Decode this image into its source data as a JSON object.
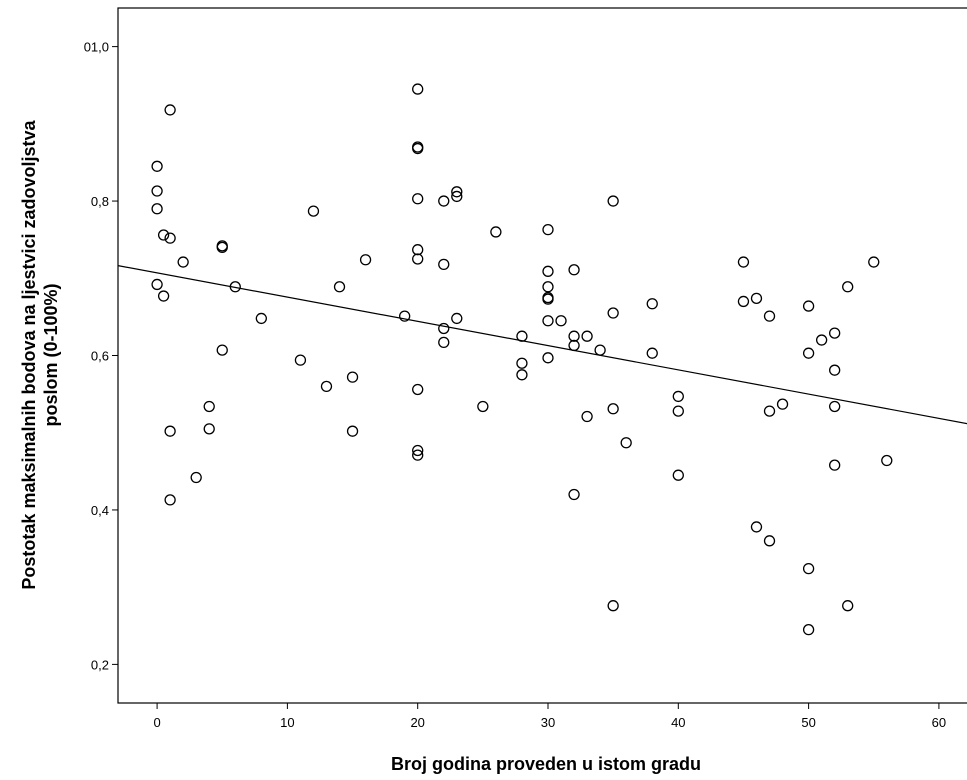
{
  "chart_data": {
    "type": "scatter",
    "title": "",
    "xlabel": "Broj godina proveden u istom gradu",
    "ylabel_lines": [
      "Postotak maksimalnih bodova na ljestvici zadovoljstva",
      "poslom (0-100%)"
    ],
    "xlim": [
      -3,
      63
    ],
    "ylim": [
      0.15,
      1.05
    ],
    "x_ticks": [
      {
        "value": 0,
        "label": "0"
      },
      {
        "value": 10,
        "label": "10"
      },
      {
        "value": 20,
        "label": "20"
      },
      {
        "value": 30,
        "label": "30"
      },
      {
        "value": 40,
        "label": "40"
      },
      {
        "value": 50,
        "label": "50"
      },
      {
        "value": 60,
        "label": "60"
      }
    ],
    "y_ticks": [
      {
        "value": 1.0,
        "label": "01,0"
      },
      {
        "value": 0.8,
        "label": "0,8"
      },
      {
        "value": 0.6,
        "label": "0,6"
      },
      {
        "value": 0.4,
        "label": "0,4"
      },
      {
        "value": 0.2,
        "label": "0,2"
      }
    ],
    "grid": false,
    "fit_line": {
      "intercept": 0.707,
      "slope": -0.00314
    },
    "points": [
      {
        "x": 0,
        "y": 0.845
      },
      {
        "x": 0,
        "y": 0.813
      },
      {
        "x": 0,
        "y": 0.79
      },
      {
        "x": 0,
        "y": 0.692
      },
      {
        "x": 0.5,
        "y": 0.677
      },
      {
        "x": 0.5,
        "y": 0.756
      },
      {
        "x": 1,
        "y": 0.918
      },
      {
        "x": 1,
        "y": 0.752
      },
      {
        "x": 1,
        "y": 0.502
      },
      {
        "x": 1,
        "y": 0.413
      },
      {
        "x": 2,
        "y": 0.721
      },
      {
        "x": 3,
        "y": 0.442
      },
      {
        "x": 4,
        "y": 0.534
      },
      {
        "x": 4,
        "y": 0.505
      },
      {
        "x": 5,
        "y": 0.742
      },
      {
        "x": 5,
        "y": 0.74
      },
      {
        "x": 5,
        "y": 0.607
      },
      {
        "x": 6,
        "y": 0.689
      },
      {
        "x": 8,
        "y": 0.648
      },
      {
        "x": 11,
        "y": 0.594
      },
      {
        "x": 12,
        "y": 0.787
      },
      {
        "x": 13,
        "y": 0.56
      },
      {
        "x": 14,
        "y": 0.689
      },
      {
        "x": 15,
        "y": 0.572
      },
      {
        "x": 15,
        "y": 0.502
      },
      {
        "x": 16,
        "y": 0.724
      },
      {
        "x": 19,
        "y": 0.651
      },
      {
        "x": 20,
        "y": 0.945
      },
      {
        "x": 20,
        "y": 0.87
      },
      {
        "x": 20,
        "y": 0.868
      },
      {
        "x": 20,
        "y": 0.803
      },
      {
        "x": 20,
        "y": 0.737
      },
      {
        "x": 20,
        "y": 0.725
      },
      {
        "x": 20,
        "y": 0.556
      },
      {
        "x": 20,
        "y": 0.477
      },
      {
        "x": 20,
        "y": 0.471
      },
      {
        "x": 22,
        "y": 0.8
      },
      {
        "x": 22,
        "y": 0.718
      },
      {
        "x": 22,
        "y": 0.635
      },
      {
        "x": 22,
        "y": 0.617
      },
      {
        "x": 23,
        "y": 0.812
      },
      {
        "x": 23,
        "y": 0.806
      },
      {
        "x": 23,
        "y": 0.648
      },
      {
        "x": 25,
        "y": 0.534
      },
      {
        "x": 26,
        "y": 0.76
      },
      {
        "x": 28,
        "y": 0.625
      },
      {
        "x": 28,
        "y": 0.59
      },
      {
        "x": 28,
        "y": 0.575
      },
      {
        "x": 30,
        "y": 0.763
      },
      {
        "x": 30,
        "y": 0.709
      },
      {
        "x": 30,
        "y": 0.689
      },
      {
        "x": 30,
        "y": 0.675
      },
      {
        "x": 30,
        "y": 0.673
      },
      {
        "x": 30,
        "y": 0.645
      },
      {
        "x": 30,
        "y": 0.597
      },
      {
        "x": 31,
        "y": 0.645
      },
      {
        "x": 32,
        "y": 0.711
      },
      {
        "x": 32,
        "y": 0.625
      },
      {
        "x": 32,
        "y": 0.613
      },
      {
        "x": 32,
        "y": 0.42
      },
      {
        "x": 33,
        "y": 0.625
      },
      {
        "x": 33,
        "y": 0.521
      },
      {
        "x": 34,
        "y": 0.607
      },
      {
        "x": 35,
        "y": 0.8
      },
      {
        "x": 35,
        "y": 0.655
      },
      {
        "x": 35,
        "y": 0.531
      },
      {
        "x": 35,
        "y": 0.276
      },
      {
        "x": 36,
        "y": 0.487
      },
      {
        "x": 38,
        "y": 0.667
      },
      {
        "x": 38,
        "y": 0.603
      },
      {
        "x": 40,
        "y": 0.547
      },
      {
        "x": 40,
        "y": 0.528
      },
      {
        "x": 40,
        "y": 0.445
      },
      {
        "x": 45,
        "y": 0.721
      },
      {
        "x": 45,
        "y": 0.67
      },
      {
        "x": 46,
        "y": 0.674
      },
      {
        "x": 46,
        "y": 0.378
      },
      {
        "x": 47,
        "y": 0.651
      },
      {
        "x": 47,
        "y": 0.528
      },
      {
        "x": 47,
        "y": 0.36
      },
      {
        "x": 48,
        "y": 0.537
      },
      {
        "x": 50,
        "y": 0.664
      },
      {
        "x": 50,
        "y": 0.603
      },
      {
        "x": 50,
        "y": 0.324
      },
      {
        "x": 50,
        "y": 0.245
      },
      {
        "x": 51,
        "y": 0.62
      },
      {
        "x": 52,
        "y": 0.629
      },
      {
        "x": 52,
        "y": 0.581
      },
      {
        "x": 52,
        "y": 0.534
      },
      {
        "x": 52,
        "y": 0.458
      },
      {
        "x": 53,
        "y": 0.689
      },
      {
        "x": 53,
        "y": 0.276
      },
      {
        "x": 55,
        "y": 0.721
      },
      {
        "x": 56,
        "y": 0.464
      }
    ]
  }
}
